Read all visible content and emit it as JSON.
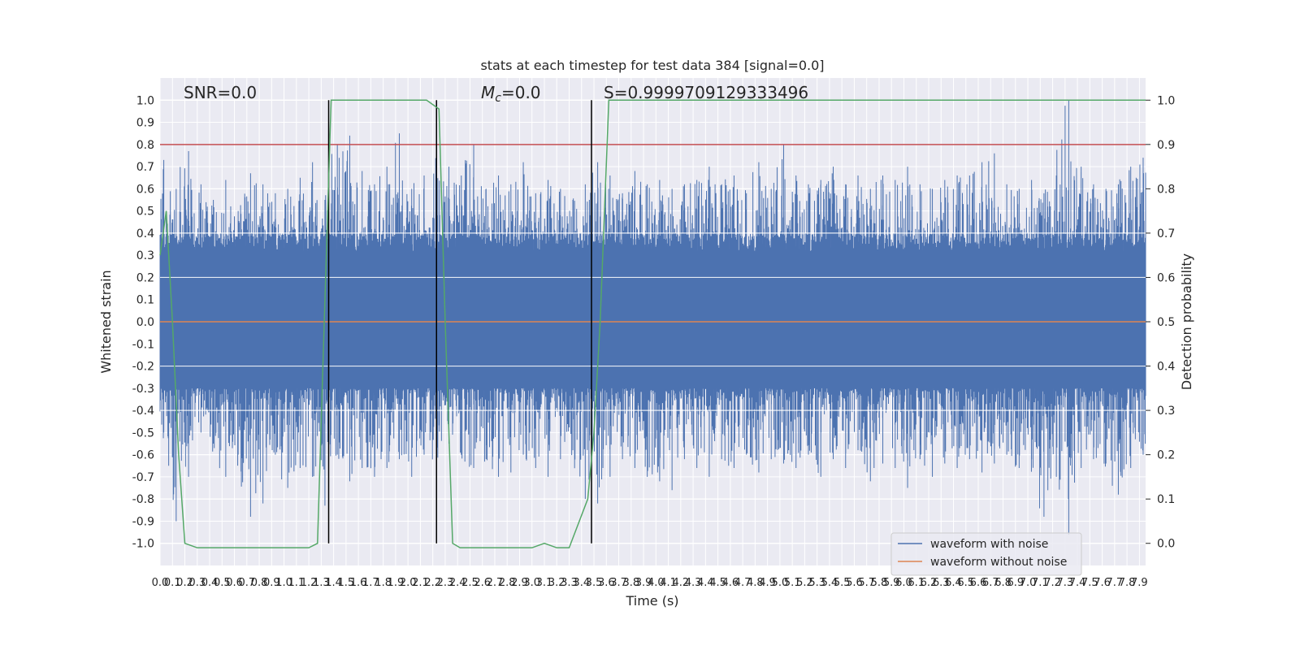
{
  "chart_data": {
    "type": "line",
    "title": "stats at each timestep for test data 384 [signal=0.0]",
    "xlabel": "Time (s)",
    "ylabel": "Whitened strain",
    "y2label": "Detection probability",
    "xlim": [
      0.0,
      7.95
    ],
    "ylim": [
      -1.1,
      1.1
    ],
    "y2lim": [
      -0.05,
      1.05
    ],
    "grid": true,
    "legend_position": "bottom-right",
    "x_ticks": [
      "0.0",
      "0.1",
      "0.2",
      "0.3",
      "0.4",
      "0.5",
      "0.6",
      "0.7",
      "0.8",
      "0.9",
      "1.0",
      "1.1",
      "1.2",
      "1.3",
      "1.4",
      "1.5",
      "1.6",
      "1.7",
      "1.8",
      "1.9",
      "2.0",
      "2.1",
      "2.2",
      "2.3",
      "2.4",
      "2.5",
      "2.6",
      "2.7",
      "2.8",
      "2.9",
      "3.0",
      "3.1",
      "3.2",
      "3.3",
      "3.4",
      "3.5",
      "3.6",
      "3.7",
      "3.8",
      "3.9",
      "4.0",
      "4.1",
      "4.2",
      "4.3",
      "4.4",
      "4.5",
      "4.6",
      "4.7",
      "4.8",
      "4.9",
      "5.0",
      "5.1",
      "5.2",
      "5.3",
      "5.4",
      "5.5",
      "5.6",
      "5.7",
      "5.8",
      "5.9",
      "6.0",
      "6.1",
      "6.2",
      "6.3",
      "6.4",
      "6.5",
      "6.6",
      "6.7",
      "6.8",
      "6.9",
      "7.0",
      "7.1",
      "7.2",
      "7.3",
      "7.4",
      "7.5",
      "7.6",
      "7.7",
      "7.8",
      "7.9"
    ],
    "y_ticks": [
      "1.0",
      "0.9",
      "0.8",
      "0.7",
      "0.6",
      "0.5",
      "0.4",
      "0.3",
      "0.2",
      "0.1",
      "0.0",
      "-0.1",
      "-0.2",
      "-0.3",
      "-0.4",
      "-0.5",
      "-0.6",
      "-0.7",
      "-0.8",
      "-0.9",
      "-1.0"
    ],
    "y2_ticks": [
      "1.0",
      "0.9",
      "0.8",
      "0.7",
      "0.6",
      "0.5",
      "0.4",
      "0.3",
      "0.2",
      "0.1",
      "0.0"
    ],
    "annotations": [
      {
        "name": "snr",
        "text": "SNR=0.0",
        "x": 0.2
      },
      {
        "name": "mc",
        "text": "=0.0",
        "x": 2.6
      },
      {
        "name": "s",
        "text": "S=0.9999709129333496",
        "x": 3.6
      }
    ],
    "noise_envelope": {
      "x": [
        0.0,
        0.1,
        0.2,
        0.3,
        0.4,
        0.5,
        0.6,
        0.7,
        0.8,
        0.9,
        1.0,
        1.1,
        1.2,
        1.3,
        1.4,
        1.5,
        1.6,
        1.7,
        1.8,
        1.9,
        2.0,
        2.1,
        2.2,
        2.3,
        2.4,
        2.5,
        2.6,
        2.7,
        2.8,
        2.9,
        3.0,
        3.1,
        3.2,
        3.3,
        3.4,
        3.5,
        3.6,
        3.7,
        3.8,
        3.9,
        4.0,
        4.1,
        4.2,
        4.3,
        4.4,
        4.5,
        4.6,
        4.7,
        4.8,
        4.9,
        5.0,
        5.1,
        5.2,
        5.3,
        5.4,
        5.5,
        5.6,
        5.7,
        5.8,
        5.9,
        6.0,
        6.1,
        6.2,
        6.3,
        6.4,
        6.5,
        6.6,
        6.7,
        6.8,
        6.9,
        7.0,
        7.1,
        7.2,
        7.3,
        7.4,
        7.5,
        7.6,
        7.7,
        7.8,
        7.9
      ],
      "max": [
        0.73,
        0.6,
        0.77,
        0.62,
        0.55,
        0.64,
        0.5,
        0.67,
        0.62,
        0.58,
        0.6,
        0.65,
        0.72,
        0.55,
        0.8,
        0.84,
        0.68,
        0.62,
        0.7,
        0.85,
        0.6,
        0.66,
        0.85,
        0.7,
        0.66,
        0.8,
        0.6,
        0.66,
        0.62,
        0.72,
        0.58,
        0.64,
        0.6,
        0.55,
        0.62,
        0.72,
        0.66,
        0.58,
        0.68,
        0.62,
        0.64,
        0.6,
        0.62,
        0.64,
        0.7,
        0.62,
        0.66,
        0.58,
        0.72,
        0.6,
        0.8,
        0.66,
        0.62,
        0.64,
        0.7,
        0.62,
        0.66,
        0.6,
        0.66,
        0.64,
        0.7,
        0.62,
        0.6,
        0.64,
        0.66,
        0.66,
        0.72,
        0.76,
        0.62,
        0.6,
        0.64,
        0.58,
        0.66,
        1.0,
        0.7,
        0.62,
        0.6,
        0.62,
        0.7,
        0.74
      ],
      "min": [
        -0.5,
        -0.9,
        -0.7,
        -0.5,
        -0.55,
        -0.7,
        -0.6,
        -0.88,
        -0.82,
        -0.6,
        -0.75,
        -0.66,
        -0.7,
        -0.83,
        -0.6,
        -0.72,
        -0.66,
        -0.7,
        -0.66,
        -0.62,
        -0.7,
        -0.6,
        -0.66,
        -0.55,
        -0.6,
        -0.66,
        -0.62,
        -0.7,
        -0.68,
        -0.6,
        -0.66,
        -0.7,
        -0.62,
        -0.58,
        -0.8,
        -0.82,
        -0.7,
        -0.62,
        -0.66,
        -0.7,
        -0.72,
        -0.76,
        -0.62,
        -0.66,
        -0.7,
        -0.62,
        -0.66,
        -0.6,
        -0.68,
        -0.62,
        -0.64,
        -0.66,
        -0.6,
        -0.7,
        -0.62,
        -0.66,
        -0.58,
        -0.72,
        -0.64,
        -0.66,
        -0.75,
        -0.62,
        -0.7,
        -0.64,
        -0.66,
        -0.62,
        -0.68,
        -0.64,
        -0.6,
        -0.66,
        -0.62,
        -0.88,
        -0.7,
        -0.96,
        -0.66,
        -0.62,
        -0.64,
        -0.78,
        -0.66,
        -0.6
      ]
    },
    "series": [
      {
        "name": "waveform with noise",
        "color": "#4c72b0",
        "axis": "left"
      },
      {
        "name": "waveform without noise",
        "color": "#dd8452",
        "axis": "left",
        "x": [
          0.0,
          7.95
        ],
        "y": [
          0.0,
          0.0
        ]
      },
      {
        "color": "#55a868",
        "axis": "right",
        "x": [
          0.0,
          0.05,
          0.1,
          0.15,
          0.2,
          0.3,
          1.0,
          1.2,
          1.27,
          1.33,
          1.38,
          1.45,
          1.5,
          2.0,
          2.15,
          2.25,
          2.3,
          2.36,
          2.42,
          3.0,
          3.1,
          3.2,
          3.3,
          3.45,
          3.5,
          3.55,
          3.62,
          7.95
        ],
        "y": [
          0.65,
          0.75,
          0.5,
          0.2,
          0.0,
          -0.01,
          -0.01,
          -0.01,
          0.0,
          0.55,
          1.0,
          1.0,
          1.0,
          1.0,
          1.0,
          0.98,
          0.5,
          0.0,
          -0.01,
          -0.01,
          0.0,
          -0.01,
          -0.01,
          0.1,
          0.25,
          0.5,
          1.0,
          1.0
        ]
      }
    ],
    "threshold": {
      "axis": "right",
      "value": 0.9,
      "color": "#c44e52"
    },
    "vlines": [
      1.36,
      2.23,
      3.48
    ]
  }
}
